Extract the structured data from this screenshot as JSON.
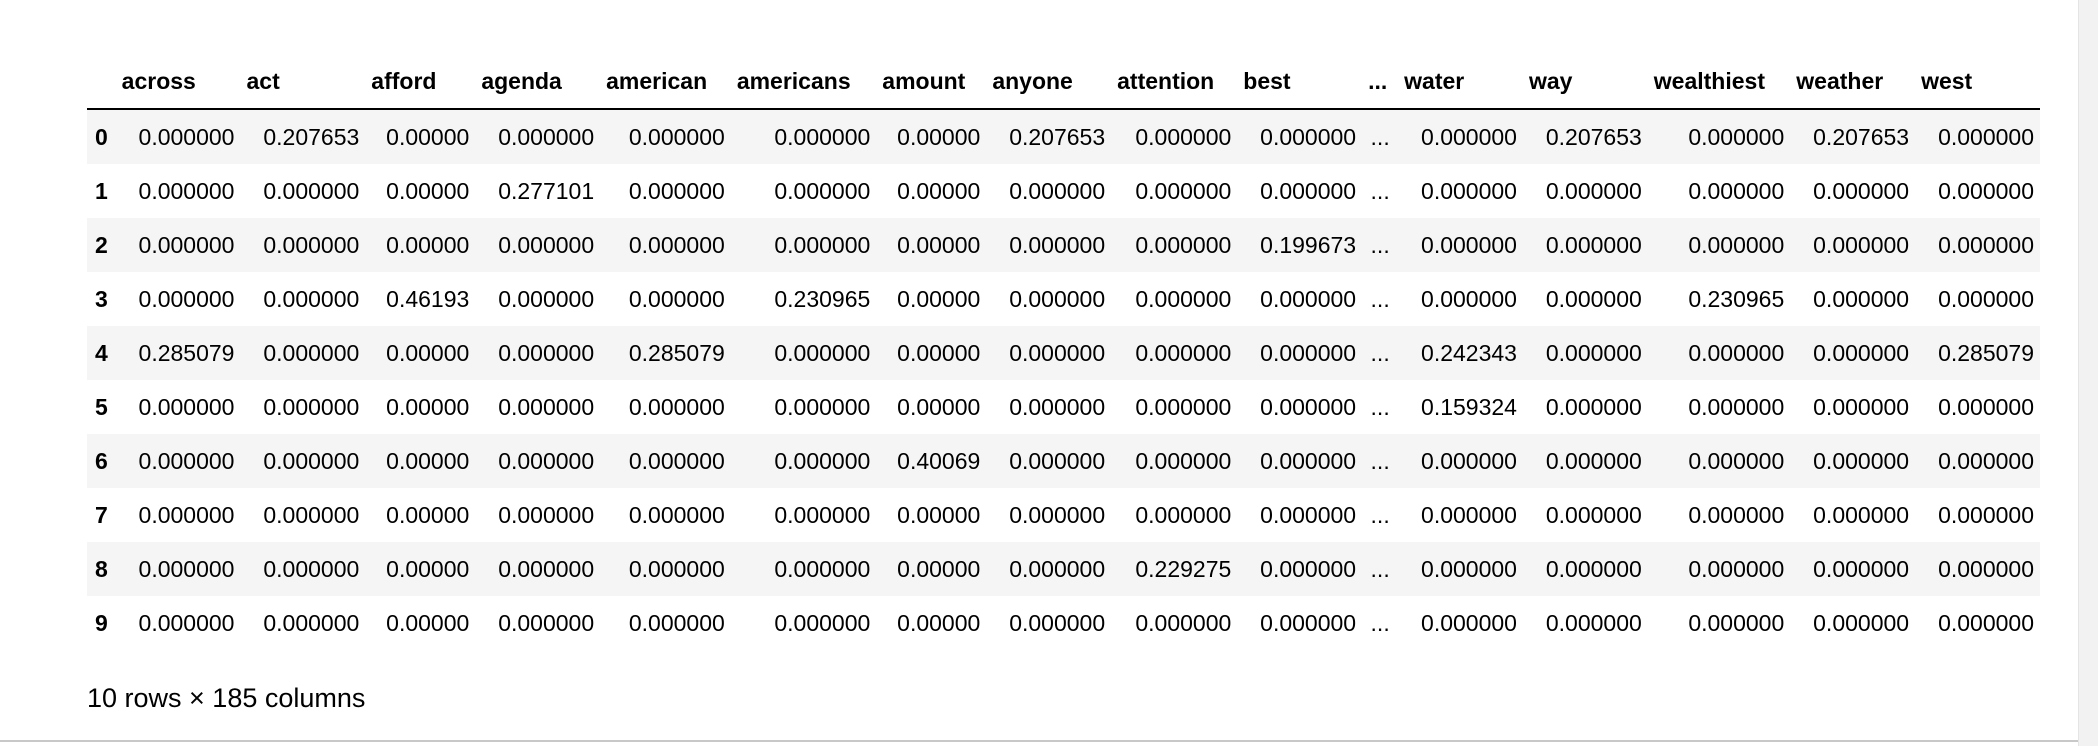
{
  "dataframe": {
    "index_header": "",
    "columns": [
      "across",
      "act",
      "afford",
      "agenda",
      "american",
      "americans",
      "amount",
      "anyone",
      "attention",
      "best",
      "...",
      "water",
      "way",
      "wealthiest",
      "weather",
      "west"
    ],
    "rows": [
      {
        "index": "0",
        "values": [
          "0.000000",
          "0.207653",
          "0.00000",
          "0.000000",
          "0.000000",
          "0.000000",
          "0.00000",
          "0.207653",
          "0.000000",
          "0.000000",
          "...",
          "0.000000",
          "0.207653",
          "0.000000",
          "0.207653",
          "0.000000"
        ]
      },
      {
        "index": "1",
        "values": [
          "0.000000",
          "0.000000",
          "0.00000",
          "0.277101",
          "0.000000",
          "0.000000",
          "0.00000",
          "0.000000",
          "0.000000",
          "0.000000",
          "...",
          "0.000000",
          "0.000000",
          "0.000000",
          "0.000000",
          "0.000000"
        ]
      },
      {
        "index": "2",
        "values": [
          "0.000000",
          "0.000000",
          "0.00000",
          "0.000000",
          "0.000000",
          "0.000000",
          "0.00000",
          "0.000000",
          "0.000000",
          "0.199673",
          "...",
          "0.000000",
          "0.000000",
          "0.000000",
          "0.000000",
          "0.000000"
        ]
      },
      {
        "index": "3",
        "values": [
          "0.000000",
          "0.000000",
          "0.46193",
          "0.000000",
          "0.000000",
          "0.230965",
          "0.00000",
          "0.000000",
          "0.000000",
          "0.000000",
          "...",
          "0.000000",
          "0.000000",
          "0.230965",
          "0.000000",
          "0.000000"
        ]
      },
      {
        "index": "4",
        "values": [
          "0.285079",
          "0.000000",
          "0.00000",
          "0.000000",
          "0.285079",
          "0.000000",
          "0.00000",
          "0.000000",
          "0.000000",
          "0.000000",
          "...",
          "0.242343",
          "0.000000",
          "0.000000",
          "0.000000",
          "0.285079"
        ]
      },
      {
        "index": "5",
        "values": [
          "0.000000",
          "0.000000",
          "0.00000",
          "0.000000",
          "0.000000",
          "0.000000",
          "0.00000",
          "0.000000",
          "0.000000",
          "0.000000",
          "...",
          "0.159324",
          "0.000000",
          "0.000000",
          "0.000000",
          "0.000000"
        ]
      },
      {
        "index": "6",
        "values": [
          "0.000000",
          "0.000000",
          "0.00000",
          "0.000000",
          "0.000000",
          "0.000000",
          "0.40069",
          "0.000000",
          "0.000000",
          "0.000000",
          "...",
          "0.000000",
          "0.000000",
          "0.000000",
          "0.000000",
          "0.000000"
        ]
      },
      {
        "index": "7",
        "values": [
          "0.000000",
          "0.000000",
          "0.00000",
          "0.000000",
          "0.000000",
          "0.000000",
          "0.00000",
          "0.000000",
          "0.000000",
          "0.000000",
          "...",
          "0.000000",
          "0.000000",
          "0.000000",
          "0.000000",
          "0.000000"
        ]
      },
      {
        "index": "8",
        "values": [
          "0.000000",
          "0.000000",
          "0.00000",
          "0.000000",
          "0.000000",
          "0.000000",
          "0.00000",
          "0.000000",
          "0.229275",
          "0.000000",
          "...",
          "0.000000",
          "0.000000",
          "0.000000",
          "0.000000",
          "0.000000"
        ]
      },
      {
        "index": "9",
        "values": [
          "0.000000",
          "0.000000",
          "0.00000",
          "0.000000",
          "0.000000",
          "0.000000",
          "0.00000",
          "0.000000",
          "0.000000",
          "0.000000",
          "...",
          "0.000000",
          "0.000000",
          "0.000000",
          "0.000000",
          "0.000000"
        ]
      }
    ]
  },
  "shape_note": "10 rows × 185 columns",
  "colors": {
    "row_stripe": "#f5f5f5",
    "header_rule": "#000000"
  }
}
